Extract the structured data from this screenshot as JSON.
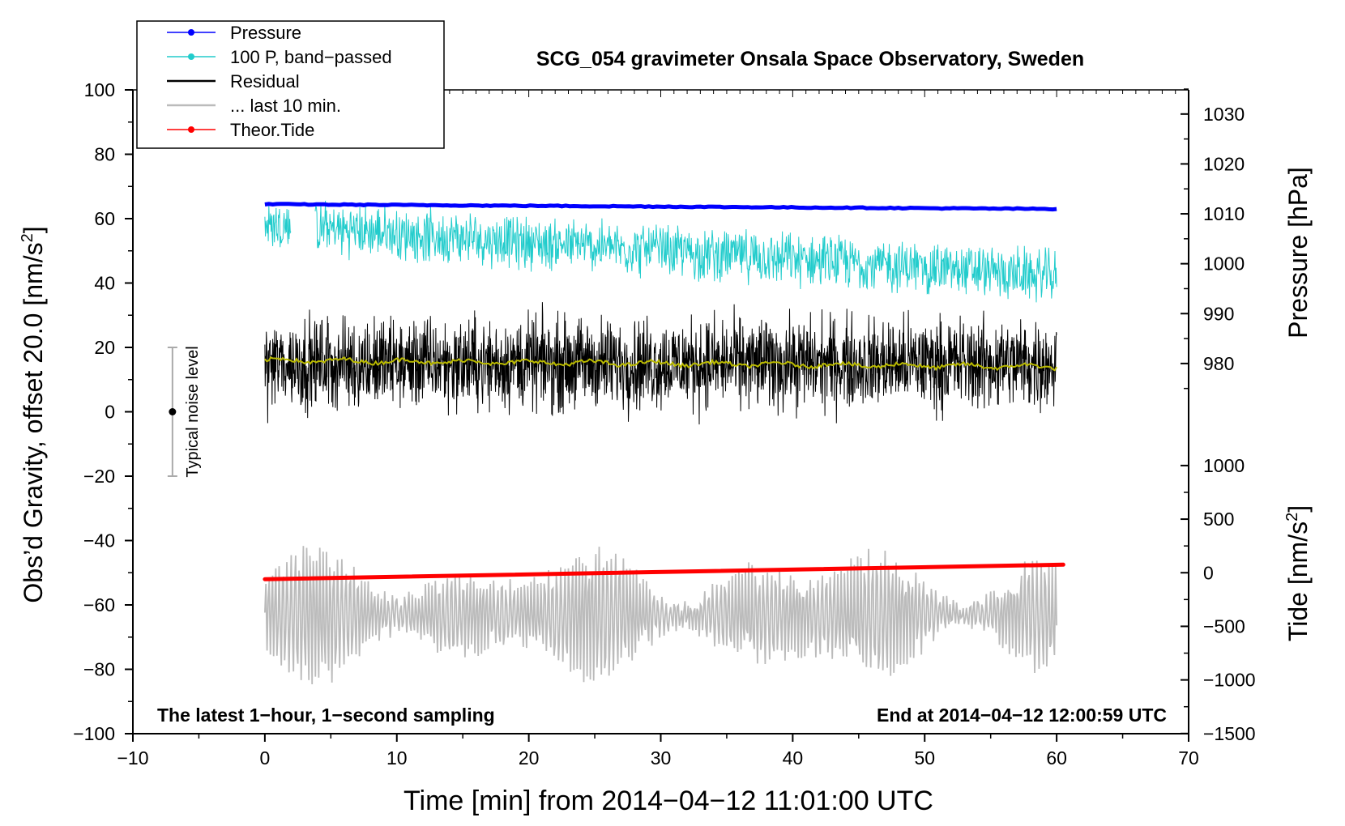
{
  "chart_data": {
    "type": "line",
    "title": "SCG_054 gravimeter Onsala Space Observatory, Sweden",
    "xlabel": "Time [min] from 2014−04−12 11:01:00 UTC",
    "ylabel": "Obs’d Gravity, offset 20.0 [nm/s",
    "ylabel_sup": "2",
    "ylabel_end": "]",
    "y2label": "Pressure [hPa]",
    "y3label": "Tide [nm/s",
    "y3label_sup": "2",
    "y3label_end": "]",
    "xlim": [
      -10,
      70
    ],
    "ylim": [
      -100,
      100
    ],
    "xticks": [
      -10,
      0,
      10,
      20,
      30,
      40,
      50,
      60,
      70
    ],
    "xtick_labels": [
      "−10",
      "0",
      "10",
      "20",
      "30",
      "40",
      "50",
      "60",
      "70"
    ],
    "yticks": [
      -100,
      -80,
      -60,
      -40,
      -20,
      0,
      20,
      40,
      60,
      80,
      100
    ],
    "ytick_labels": [
      "−100",
      "−80",
      "−60",
      "−40",
      "−20",
      "0",
      "20",
      "40",
      "60",
      "80",
      "100"
    ],
    "pressure_axis": {
      "ticks": [
        980,
        990,
        1000,
        1010,
        1020,
        1030
      ],
      "tick_labels": [
        "980",
        "990",
        "1000",
        "1010",
        "1020",
        "1030"
      ],
      "gravity_at_980": 15,
      "gravity_per_hpa": 1.55
    },
    "tide_axis": {
      "ticks": [
        -1500,
        -1000,
        -500,
        0,
        500,
        1000
      ],
      "tick_labels": [
        "−1500",
        "−1000",
        "−500",
        "0",
        "500",
        "1000"
      ],
      "gravity_at_0": -50,
      "gravity_per_unit": 0.0333
    },
    "legend": [
      {
        "label": "Pressure",
        "color": "#0000ff",
        "marker": true
      },
      {
        "label": "100 P, band−passed",
        "color": "#22cccc",
        "marker": true
      },
      {
        "label": "Residual",
        "color": "#000000",
        "marker": false
      },
      {
        "label": "... last 10 min.",
        "color": "#bbbbbb",
        "marker": false
      },
      {
        "label": "Theor.Tide",
        "color": "#ff0000",
        "marker": true
      }
    ],
    "legend_position": "top-left",
    "series": [
      {
        "name": "Pressure",
        "color": "#0000ff",
        "x": [
          0,
          60
        ],
        "values": [
          64.5,
          63.0
        ]
      },
      {
        "name": "100 P, band−passed",
        "color": "#22cccc",
        "x": [
          0,
          60
        ],
        "center": [
          58,
          42
        ],
        "amplitude": 8
      },
      {
        "name": "Residual",
        "color": "#000000",
        "x": [
          0,
          60
        ],
        "center": [
          15,
          15
        ],
        "amplitude": 18
      },
      {
        "name": "Residual smoothed",
        "color": "#bbbb00",
        "x": [
          0,
          60
        ],
        "values": [
          16,
          14
        ]
      },
      {
        "name": "... last 10 min.",
        "color": "#bbbbbb",
        "x": [
          0,
          60
        ],
        "center": [
          -63,
          -63
        ],
        "amplitude": 22
      },
      {
        "name": "Theor.Tide",
        "color": "#ff0000",
        "x": [
          0,
          60.5
        ],
        "values": [
          -52,
          -47.5
        ]
      }
    ],
    "noise_indicator": {
      "label": "Typical noise level",
      "x": -7,
      "center": 0,
      "low": -20,
      "high": 20
    },
    "annotations": {
      "left": "The latest 1−hour, 1−second sampling",
      "right": "End at 2014−04−12 12:00:59 UTC"
    }
  },
  "colors": {
    "pressure": "#0000ff",
    "bandpassed": "#22cccc",
    "residual": "#000000",
    "smoothed": "#bbbb00",
    "last10": "#bbbbbb",
    "tide": "#ff0000"
  }
}
